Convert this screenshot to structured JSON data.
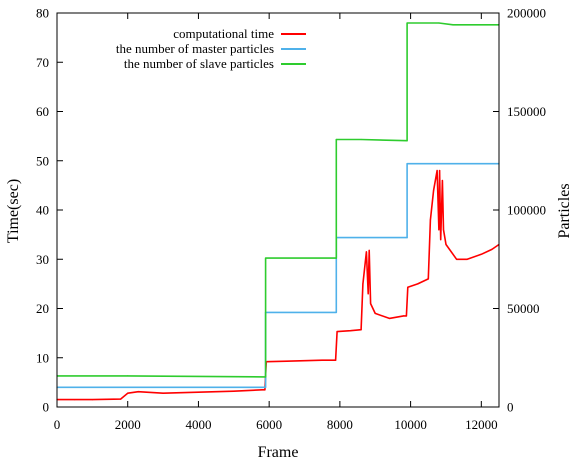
{
  "chart_data": {
    "type": "line",
    "xlabel": "Frame",
    "ylabel": "Time(sec)",
    "y2label": "Particles",
    "xlim": [
      0,
      12500
    ],
    "ylim": [
      0,
      80
    ],
    "y2lim": [
      0,
      200000
    ],
    "x_ticks": [
      0,
      2000,
      4000,
      6000,
      8000,
      10000,
      12000
    ],
    "y_ticks": [
      0,
      10,
      20,
      30,
      40,
      50,
      60,
      70,
      80
    ],
    "y2_ticks": [
      0,
      50000,
      100000,
      150000,
      200000
    ],
    "legend_position": "top-left",
    "grid": false,
    "series": [
      {
        "name": "computational time",
        "axis": "left",
        "color": "#ff0000",
        "x": [
          0,
          500,
          1000,
          1800,
          2000,
          2300,
          3000,
          4000,
          5000,
          5800,
          5880,
          5920,
          6500,
          7000,
          7500,
          7880,
          7920,
          8300,
          8600,
          8650,
          8750,
          8800,
          8830,
          8870,
          9000,
          9400,
          9800,
          9880,
          9920,
          10200,
          10500,
          10560,
          10650,
          10750,
          10800,
          10820,
          10850,
          10900,
          10930,
          11000,
          11300,
          11600,
          12000,
          12300,
          12500
        ],
        "values": [
          1.5,
          1.5,
          1.5,
          1.6,
          2.8,
          3.1,
          2.8,
          3.0,
          3.2,
          3.5,
          3.5,
          9.2,
          9.3,
          9.4,
          9.5,
          9.5,
          15.3,
          15.5,
          15.7,
          25.0,
          31.5,
          23.0,
          31.8,
          21.0,
          19.0,
          18.0,
          18.5,
          18.5,
          24.3,
          25.0,
          26.0,
          38.0,
          44.0,
          48.0,
          36.0,
          48.0,
          34.0,
          46.0,
          36.0,
          33.0,
          30.0,
          30.0,
          31.0,
          32.0,
          33.0
        ]
      },
      {
        "name": "the number of master particles",
        "axis": "right",
        "color": "#4fb1ea",
        "x": [
          0,
          5900,
          5900,
          7900,
          7900,
          9900,
          9900,
          12500
        ],
        "values": [
          10000,
          10000,
          48000,
          48000,
          86000,
          86000,
          123500,
          123500
        ]
      },
      {
        "name": "the number of slave particles",
        "axis": "right",
        "color": "#2ecc2e",
        "x": [
          0,
          2000,
          5900,
          5900,
          7900,
          7900,
          8600,
          9900,
          9900,
          10800,
          11200,
          12500
        ],
        "values": [
          15800,
          15800,
          15300,
          75600,
          75600,
          135800,
          135800,
          135200,
          194900,
          194900,
          194000,
          194000
        ]
      }
    ]
  }
}
